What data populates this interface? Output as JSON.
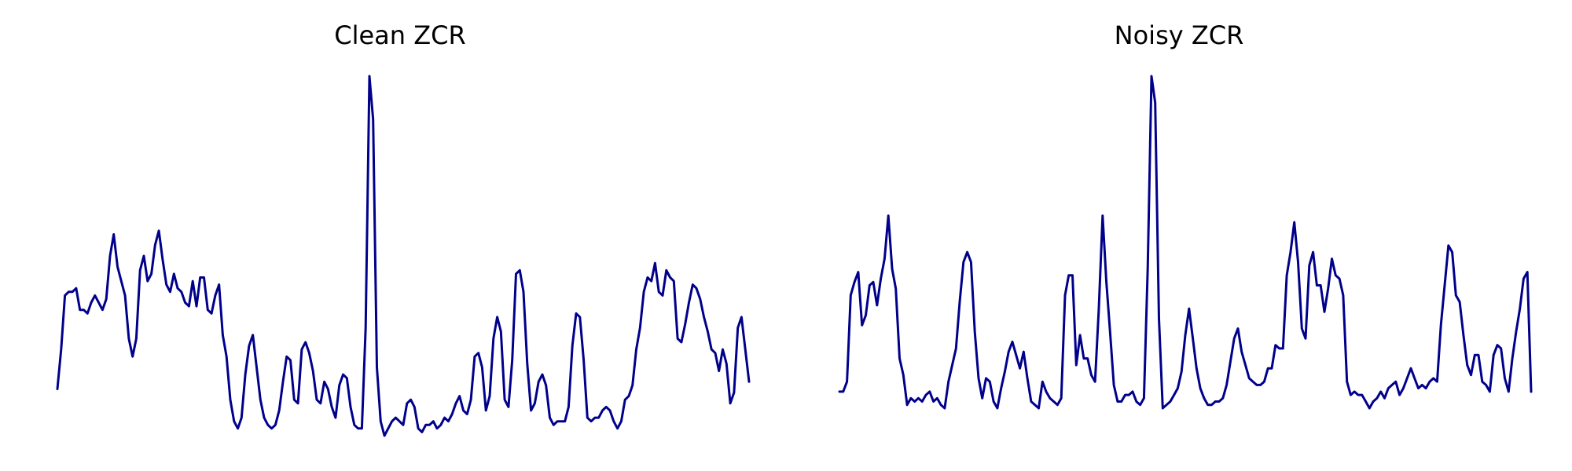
{
  "chart_data": [
    {
      "type": "line",
      "title": "Clean ZCR",
      "axes_visible": false,
      "grid": false,
      "line_color": "#00008b",
      "ylim": [
        0.0,
        1.0
      ],
      "y": [
        0.13,
        0.24,
        0.39,
        0.4,
        0.4,
        0.41,
        0.35,
        0.35,
        0.34,
        0.37,
        0.39,
        0.37,
        0.35,
        0.38,
        0.5,
        0.56,
        0.47,
        0.43,
        0.39,
        0.27,
        0.22,
        0.27,
        0.46,
        0.5,
        0.43,
        0.45,
        0.53,
        0.57,
        0.49,
        0.42,
        0.4,
        0.45,
        0.41,
        0.4,
        0.37,
        0.36,
        0.43,
        0.36,
        0.44,
        0.44,
        0.35,
        0.34,
        0.39,
        0.42,
        0.28,
        0.22,
        0.1,
        0.04,
        0.02,
        0.05,
        0.17,
        0.25,
        0.28,
        0.19,
        0.1,
        0.05,
        0.03,
        0.02,
        0.03,
        0.07,
        0.15,
        0.22,
        0.21,
        0.1,
        0.09,
        0.24,
        0.26,
        0.23,
        0.18,
        0.1,
        0.09,
        0.15,
        0.13,
        0.08,
        0.05,
        0.14,
        0.17,
        0.16,
        0.08,
        0.03,
        0.02,
        0.02,
        0.3,
        1.0,
        0.88,
        0.19,
        0.04,
        0.0,
        0.02,
        0.04,
        0.05,
        0.04,
        0.03,
        0.09,
        0.1,
        0.08,
        0.02,
        0.01,
        0.03,
        0.03,
        0.04,
        0.02,
        0.03,
        0.05,
        0.04,
        0.06,
        0.09,
        0.11,
        0.07,
        0.06,
        0.1,
        0.22,
        0.23,
        0.19,
        0.07,
        0.11,
        0.27,
        0.33,
        0.29,
        0.1,
        0.08,
        0.21,
        0.45,
        0.46,
        0.4,
        0.2,
        0.07,
        0.09,
        0.15,
        0.17,
        0.14,
        0.05,
        0.03,
        0.04,
        0.04,
        0.04,
        0.08,
        0.25,
        0.34,
        0.33,
        0.21,
        0.05,
        0.04,
        0.05,
        0.05,
        0.07,
        0.08,
        0.07,
        0.04,
        0.02,
        0.04,
        0.1,
        0.11,
        0.14,
        0.24,
        0.3,
        0.4,
        0.44,
        0.43,
        0.48,
        0.4,
        0.39,
        0.46,
        0.44,
        0.43,
        0.27,
        0.26,
        0.31,
        0.37,
        0.42,
        0.41,
        0.38,
        0.33,
        0.29,
        0.24,
        0.23,
        0.18,
        0.24,
        0.2,
        0.09,
        0.12,
        0.3,
        0.33,
        0.24,
        0.15
      ]
    },
    {
      "type": "line",
      "title": "Noisy ZCR",
      "axes_visible": false,
      "grid": false,
      "line_color": "#00008b",
      "ylim": [
        0.0,
        1.0
      ],
      "y": [
        0.05,
        0.05,
        0.08,
        0.34,
        0.38,
        0.41,
        0.25,
        0.28,
        0.37,
        0.38,
        0.31,
        0.39,
        0.45,
        0.58,
        0.42,
        0.36,
        0.15,
        0.1,
        0.01,
        0.03,
        0.02,
        0.03,
        0.02,
        0.04,
        0.05,
        0.02,
        0.03,
        0.01,
        0.0,
        0.08,
        0.13,
        0.18,
        0.32,
        0.44,
        0.47,
        0.44,
        0.23,
        0.09,
        0.03,
        0.09,
        0.08,
        0.02,
        0.0,
        0.06,
        0.11,
        0.17,
        0.2,
        0.16,
        0.12,
        0.17,
        0.09,
        0.02,
        0.01,
        0.0,
        0.08,
        0.05,
        0.03,
        0.02,
        0.01,
        0.03,
        0.34,
        0.4,
        0.4,
        0.13,
        0.22,
        0.15,
        0.15,
        0.1,
        0.08,
        0.3,
        0.58,
        0.38,
        0.23,
        0.07,
        0.02,
        0.02,
        0.04,
        0.04,
        0.05,
        0.02,
        0.01,
        0.03,
        0.42,
        1.0,
        0.92,
        0.27,
        0.0,
        0.01,
        0.02,
        0.04,
        0.06,
        0.11,
        0.22,
        0.3,
        0.21,
        0.12,
        0.06,
        0.03,
        0.01,
        0.01,
        0.02,
        0.02,
        0.03,
        0.07,
        0.14,
        0.21,
        0.24,
        0.17,
        0.13,
        0.09,
        0.08,
        0.07,
        0.07,
        0.08,
        0.12,
        0.12,
        0.19,
        0.18,
        0.18,
        0.4,
        0.47,
        0.56,
        0.44,
        0.24,
        0.21,
        0.43,
        0.47,
        0.37,
        0.37,
        0.29,
        0.36,
        0.45,
        0.4,
        0.39,
        0.34,
        0.08,
        0.04,
        0.05,
        0.04,
        0.04,
        0.02,
        0.0,
        0.02,
        0.03,
        0.05,
        0.03,
        0.06,
        0.07,
        0.08,
        0.04,
        0.06,
        0.09,
        0.12,
        0.09,
        0.06,
        0.07,
        0.06,
        0.08,
        0.09,
        0.08,
        0.25,
        0.37,
        0.49,
        0.47,
        0.34,
        0.32,
        0.22,
        0.13,
        0.1,
        0.16,
        0.16,
        0.08,
        0.07,
        0.05,
        0.16,
        0.19,
        0.18,
        0.09,
        0.05,
        0.15,
        0.23,
        0.3,
        0.39,
        0.41,
        0.05
      ]
    }
  ]
}
